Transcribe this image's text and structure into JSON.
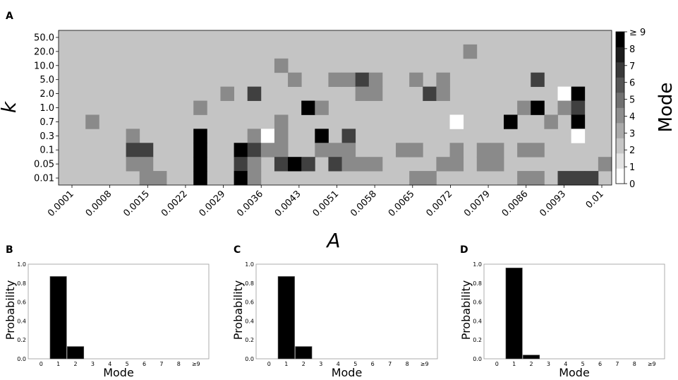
{
  "chart_data": [
    {
      "panel": "A",
      "type": "heatmap",
      "xlabel": "A",
      "ylabel": "k",
      "colorbar_label": "Mode",
      "x_tick_labels": [
        "0.0001",
        "0.0008",
        "0.0015",
        "0.0022",
        "0.0029",
        "0.0036",
        "0.0043",
        "0.0051",
        "0.0058",
        "0.0065",
        "0.0072",
        "0.0079",
        "0.0086",
        "0.0093",
        "0.01"
      ],
      "y_tick_labels": [
        "50.0",
        "20.0",
        "10.0",
        "5.0",
        "2.0",
        "1.0",
        "0.7",
        "0.3",
        "0.1",
        "0.05",
        "0.01"
      ],
      "colorbar_ticks": [
        "0",
        "1",
        "2",
        "3",
        "4",
        "5",
        "6",
        "7",
        "8",
        "≥ 9"
      ],
      "colormap": "greys",
      "mode_grid_top_to_bottom": [
        [
          1,
          1,
          1,
          1,
          1,
          1,
          1,
          1,
          1,
          1,
          1,
          1,
          1,
          1,
          1,
          1,
          1,
          1,
          1,
          1,
          1,
          1,
          1,
          1,
          1,
          1,
          1,
          1,
          1,
          1,
          1,
          1,
          1,
          1,
          1,
          1,
          1,
          1,
          1,
          1,
          1
        ],
        [
          1,
          1,
          1,
          1,
          1,
          1,
          1,
          1,
          1,
          1,
          1,
          1,
          1,
          1,
          1,
          1,
          1,
          1,
          1,
          1,
          1,
          1,
          1,
          1,
          1,
          1,
          1,
          1,
          1,
          1,
          3,
          1,
          1,
          1,
          1,
          1,
          1,
          1,
          1,
          1,
          1
        ],
        [
          1,
          1,
          1,
          1,
          1,
          1,
          1,
          1,
          1,
          1,
          1,
          1,
          1,
          1,
          1,
          1,
          3,
          1,
          1,
          1,
          1,
          1,
          1,
          1,
          1,
          1,
          1,
          1,
          1,
          1,
          1,
          1,
          1,
          1,
          1,
          1,
          1,
          1,
          1,
          1,
          1
        ],
        [
          1,
          1,
          1,
          1,
          1,
          1,
          1,
          1,
          1,
          1,
          1,
          1,
          1,
          1,
          1,
          1,
          1,
          3,
          1,
          1,
          3,
          3,
          6,
          3,
          1,
          1,
          3,
          1,
          3,
          1,
          1,
          1,
          1,
          1,
          1,
          6,
          1,
          1,
          1,
          1,
          1
        ],
        [
          1,
          1,
          1,
          1,
          1,
          1,
          1,
          1,
          1,
          1,
          1,
          1,
          3,
          1,
          6,
          1,
          1,
          1,
          1,
          1,
          1,
          1,
          3,
          3,
          1,
          1,
          1,
          6,
          3,
          1,
          1,
          1,
          1,
          1,
          1,
          1,
          1,
          0,
          9,
          1,
          1
        ],
        [
          1,
          1,
          1,
          1,
          1,
          1,
          1,
          1,
          1,
          1,
          3,
          1,
          1,
          1,
          1,
          1,
          1,
          1,
          9,
          3,
          1,
          1,
          1,
          1,
          1,
          1,
          1,
          1,
          1,
          1,
          1,
          1,
          1,
          1,
          3,
          9,
          1,
          3,
          6,
          1,
          1
        ],
        [
          1,
          1,
          3,
          1,
          1,
          1,
          1,
          1,
          1,
          1,
          1,
          1,
          1,
          1,
          1,
          1,
          3,
          1,
          1,
          1,
          1,
          1,
          1,
          1,
          1,
          1,
          1,
          1,
          1,
          0,
          1,
          1,
          1,
          9,
          1,
          1,
          3,
          1,
          9,
          1,
          1
        ],
        [
          1,
          1,
          1,
          1,
          1,
          3,
          1,
          1,
          1,
          1,
          9,
          1,
          1,
          1,
          3,
          0,
          3,
          1,
          1,
          9,
          1,
          6,
          1,
          1,
          1,
          1,
          1,
          1,
          1,
          1,
          1,
          1,
          1,
          1,
          1,
          1,
          1,
          1,
          0,
          1,
          1
        ],
        [
          1,
          1,
          1,
          1,
          1,
          6,
          6,
          1,
          1,
          1,
          9,
          1,
          1,
          9,
          6,
          3,
          3,
          1,
          1,
          3,
          3,
          3,
          1,
          1,
          1,
          3,
          3,
          1,
          1,
          3,
          1,
          3,
          3,
          1,
          3,
          3,
          1,
          1,
          1,
          1,
          1
        ],
        [
          1,
          1,
          1,
          1,
          1,
          3,
          3,
          1,
          1,
          1,
          9,
          1,
          1,
          6,
          3,
          1,
          6,
          9,
          6,
          1,
          6,
          3,
          3,
          3,
          1,
          1,
          1,
          1,
          3,
          3,
          1,
          3,
          3,
          1,
          1,
          1,
          1,
          1,
          1,
          1,
          3
        ],
        [
          1,
          1,
          1,
          1,
          1,
          1,
          3,
          3,
          1,
          1,
          9,
          1,
          1,
          9,
          3,
          1,
          1,
          1,
          1,
          1,
          1,
          1,
          1,
          1,
          1,
          1,
          3,
          3,
          1,
          1,
          1,
          1,
          1,
          1,
          3,
          3,
          1,
          6,
          6,
          6,
          1
        ]
      ]
    },
    {
      "panel": "B",
      "type": "bar",
      "xlabel": "Mode",
      "ylabel": "Probability",
      "categories": [
        "0",
        "1",
        "2",
        "3",
        "4",
        "5",
        "6",
        "7",
        "8",
        "≥9"
      ],
      "values": [
        0,
        0.87,
        0.13,
        0,
        0,
        0,
        0,
        0,
        0,
        0
      ],
      "ylim": [
        0,
        1.0
      ],
      "y_ticks": [
        "0.0",
        "0.2",
        "0.4",
        "0.6",
        "0.8",
        "1.0"
      ]
    },
    {
      "panel": "C",
      "type": "bar",
      "xlabel": "Mode",
      "ylabel": "Probability",
      "categories": [
        "0",
        "1",
        "2",
        "3",
        "4",
        "5",
        "6",
        "7",
        "8",
        "≥9"
      ],
      "values": [
        0,
        0.87,
        0.13,
        0,
        0,
        0,
        0,
        0,
        0,
        0
      ],
      "ylim": [
        0,
        1.0
      ],
      "y_ticks": [
        "0.0",
        "0.2",
        "0.4",
        "0.6",
        "0.8",
        "1.0"
      ]
    },
    {
      "panel": "D",
      "type": "bar",
      "xlabel": "Mode",
      "ylabel": "Probability",
      "categories": [
        "0",
        "1",
        "2",
        "3",
        "4",
        "5",
        "6",
        "7",
        "8",
        "≥9"
      ],
      "values": [
        0,
        0.96,
        0.04,
        0,
        0,
        0,
        0,
        0,
        0,
        0
      ],
      "ylim": [
        0,
        1.0
      ],
      "y_ticks": [
        "0.0",
        "0.2",
        "0.4",
        "0.6",
        "0.8",
        "1.0"
      ]
    }
  ],
  "panels": {
    "a": "A",
    "b": "B",
    "c": "C",
    "d": "D"
  }
}
